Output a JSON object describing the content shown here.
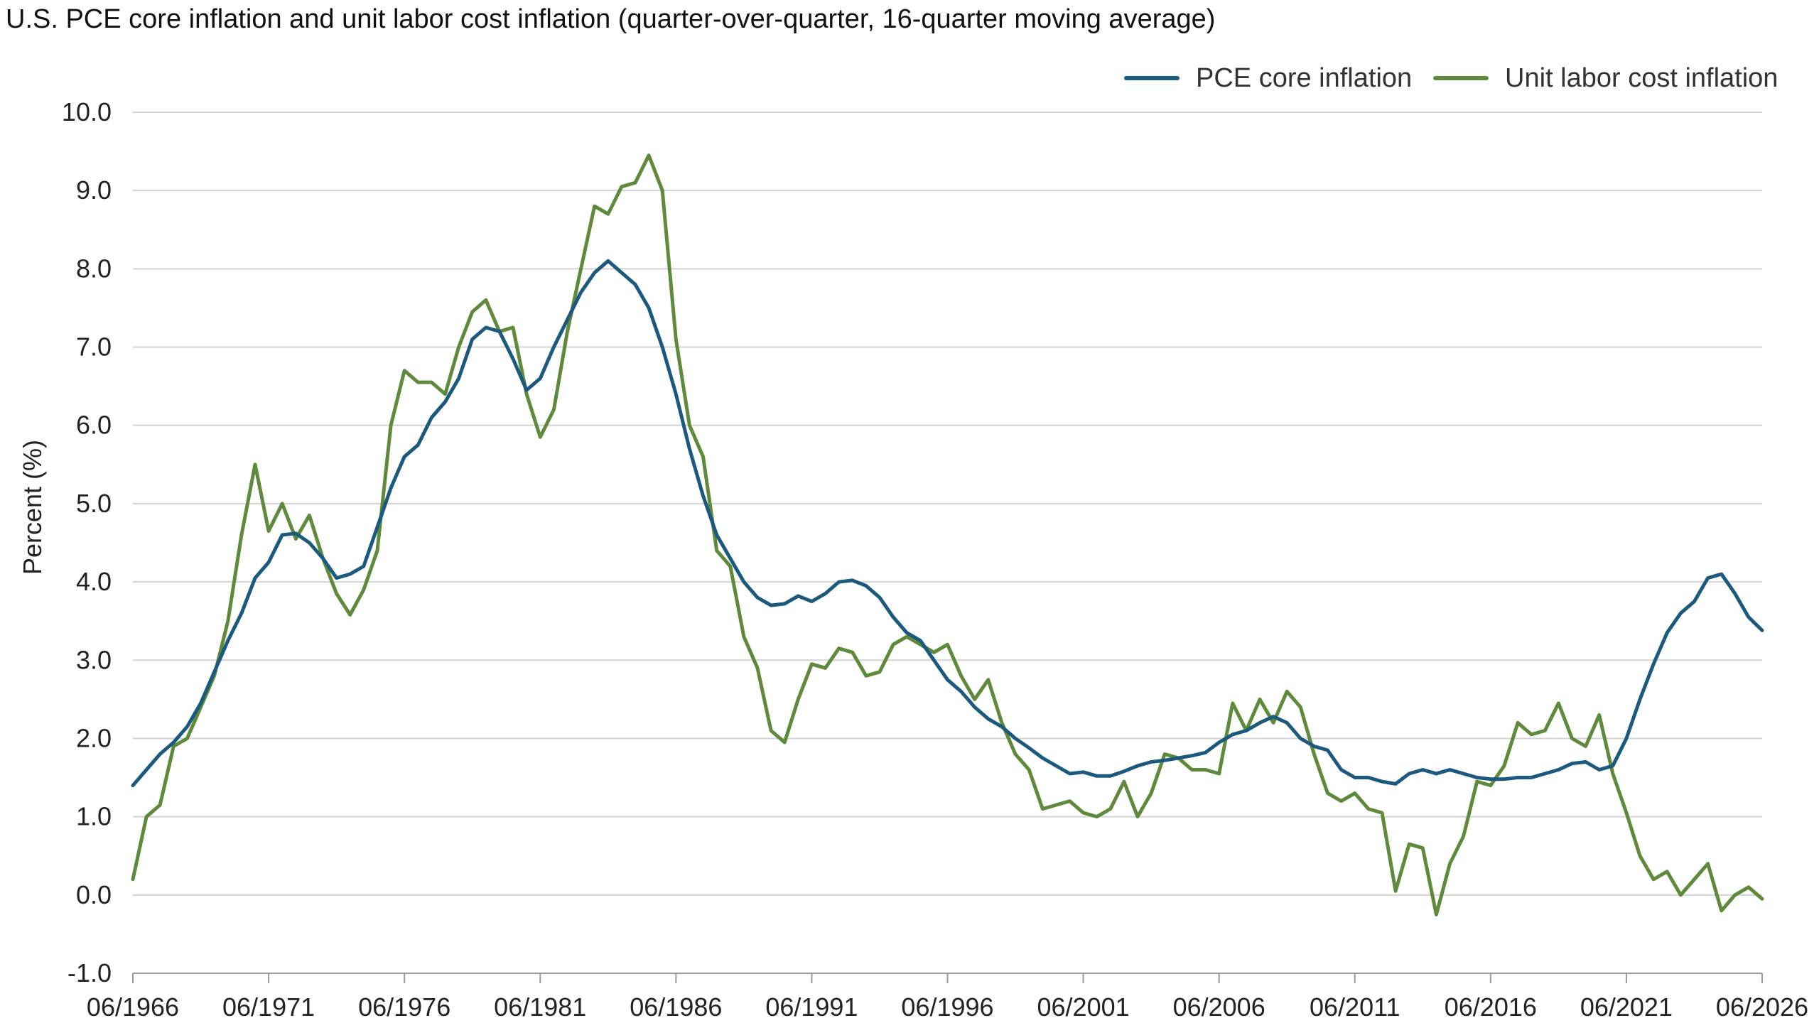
{
  "chart_data": {
    "type": "line",
    "title": "U.S. PCE core inflation and unit labor cost inflation (quarter-over-quarter, 16-quarter moving average)",
    "ylabel": "Percent (%)",
    "xlabel": "",
    "ylim": [
      -1.0,
      10.0
    ],
    "xlim": [
      1966.5,
      2026.5
    ],
    "yticks": [
      "-1.0",
      "0.0",
      "1.0",
      "2.0",
      "3.0",
      "4.0",
      "5.0",
      "6.0",
      "7.0",
      "8.0",
      "9.0",
      "10.0"
    ],
    "xticks": [
      "06/1966",
      "06/1971",
      "06/1976",
      "06/1981",
      "06/1986",
      "06/1991",
      "06/1996",
      "06/2001",
      "06/2006",
      "06/2011",
      "06/2016",
      "06/2021",
      "06/2026"
    ],
    "grid": true,
    "legend_position": "top-right",
    "series": [
      {
        "name": "PCE core inflation",
        "color": "#1b5a7e",
        "points": [
          [
            1966.5,
            1.4
          ],
          [
            1967.0,
            1.6
          ],
          [
            1967.5,
            1.8
          ],
          [
            1968.0,
            1.95
          ],
          [
            1968.5,
            2.15
          ],
          [
            1969.0,
            2.45
          ],
          [
            1969.5,
            2.85
          ],
          [
            1970.0,
            3.25
          ],
          [
            1970.5,
            3.6
          ],
          [
            1971.0,
            4.05
          ],
          [
            1971.5,
            4.25
          ],
          [
            1972.0,
            4.6
          ],
          [
            1972.5,
            4.62
          ],
          [
            1973.0,
            4.5
          ],
          [
            1973.5,
            4.3
          ],
          [
            1974.0,
            4.05
          ],
          [
            1974.5,
            4.1
          ],
          [
            1975.0,
            4.2
          ],
          [
            1975.5,
            4.7
          ],
          [
            1976.0,
            5.2
          ],
          [
            1976.5,
            5.6
          ],
          [
            1977.0,
            5.75
          ],
          [
            1977.5,
            6.1
          ],
          [
            1978.0,
            6.3
          ],
          [
            1978.5,
            6.6
          ],
          [
            1979.0,
            7.1
          ],
          [
            1979.5,
            7.25
          ],
          [
            1980.0,
            7.2
          ],
          [
            1980.5,
            6.85
          ],
          [
            1981.0,
            6.45
          ],
          [
            1981.5,
            6.6
          ],
          [
            1982.0,
            7.0
          ],
          [
            1982.5,
            7.35
          ],
          [
            1983.0,
            7.7
          ],
          [
            1983.5,
            7.95
          ],
          [
            1984.0,
            8.1
          ],
          [
            1984.5,
            7.95
          ],
          [
            1985.0,
            7.8
          ],
          [
            1985.5,
            7.5
          ],
          [
            1986.0,
            7.0
          ],
          [
            1986.5,
            6.4
          ],
          [
            1987.0,
            5.7
          ],
          [
            1987.5,
            5.1
          ],
          [
            1988.0,
            4.6
          ],
          [
            1988.5,
            4.3
          ],
          [
            1989.0,
            4.0
          ],
          [
            1989.5,
            3.8
          ],
          [
            1990.0,
            3.7
          ],
          [
            1990.5,
            3.72
          ],
          [
            1991.0,
            3.82
          ],
          [
            1991.5,
            3.75
          ],
          [
            1992.0,
            3.85
          ],
          [
            1992.5,
            4.0
          ],
          [
            1993.0,
            4.02
          ],
          [
            1993.5,
            3.95
          ],
          [
            1994.0,
            3.8
          ],
          [
            1994.5,
            3.55
          ],
          [
            1995.0,
            3.35
          ],
          [
            1995.5,
            3.25
          ],
          [
            1996.0,
            3.0
          ],
          [
            1996.5,
            2.75
          ],
          [
            1997.0,
            2.6
          ],
          [
            1997.5,
            2.4
          ],
          [
            1998.0,
            2.25
          ],
          [
            1998.5,
            2.15
          ],
          [
            1999.0,
            2.0
          ],
          [
            1999.5,
            1.88
          ],
          [
            2000.0,
            1.75
          ],
          [
            2000.5,
            1.65
          ],
          [
            2001.0,
            1.55
          ],
          [
            2001.5,
            1.57
          ],
          [
            2002.0,
            1.52
          ],
          [
            2002.5,
            1.52
          ],
          [
            2003.0,
            1.58
          ],
          [
            2003.5,
            1.65
          ],
          [
            2004.0,
            1.7
          ],
          [
            2004.5,
            1.72
          ],
          [
            2005.0,
            1.75
          ],
          [
            2005.5,
            1.78
          ],
          [
            2006.0,
            1.82
          ],
          [
            2006.5,
            1.95
          ],
          [
            2007.0,
            2.05
          ],
          [
            2007.5,
            2.1
          ],
          [
            2008.0,
            2.2
          ],
          [
            2008.5,
            2.28
          ],
          [
            2009.0,
            2.2
          ],
          [
            2009.5,
            2.0
          ],
          [
            2010.0,
            1.9
          ],
          [
            2010.5,
            1.85
          ],
          [
            2011.0,
            1.6
          ],
          [
            2011.5,
            1.5
          ],
          [
            2012.0,
            1.5
          ],
          [
            2012.5,
            1.45
          ],
          [
            2013.0,
            1.42
          ],
          [
            2013.5,
            1.55
          ],
          [
            2014.0,
            1.6
          ],
          [
            2014.5,
            1.55
          ],
          [
            2015.0,
            1.6
          ],
          [
            2015.5,
            1.55
          ],
          [
            2016.0,
            1.5
          ],
          [
            2016.5,
            1.48
          ],
          [
            2017.0,
            1.48
          ],
          [
            2017.5,
            1.5
          ],
          [
            2018.0,
            1.5
          ],
          [
            2018.5,
            1.55
          ],
          [
            2019.0,
            1.6
          ],
          [
            2019.5,
            1.68
          ],
          [
            2020.0,
            1.7
          ],
          [
            2020.5,
            1.6
          ],
          [
            2021.0,
            1.65
          ],
          [
            2021.5,
            2.0
          ],
          [
            2022.0,
            2.5
          ],
          [
            2022.5,
            2.95
          ],
          [
            2023.0,
            3.35
          ],
          [
            2023.5,
            3.6
          ],
          [
            2024.0,
            3.75
          ],
          [
            2024.5,
            4.05
          ],
          [
            2025.0,
            4.1
          ],
          [
            2025.5,
            3.85
          ],
          [
            2026.0,
            3.55
          ],
          [
            2026.5,
            3.38
          ]
        ]
      },
      {
        "name": "Unit labor cost inflation",
        "color": "#5f8a3c",
        "points": [
          [
            1966.5,
            0.2
          ],
          [
            1967.0,
            1.0
          ],
          [
            1967.5,
            1.15
          ],
          [
            1968.0,
            1.9
          ],
          [
            1968.5,
            2.0
          ],
          [
            1969.0,
            2.4
          ],
          [
            1969.5,
            2.8
          ],
          [
            1970.0,
            3.5
          ],
          [
            1970.5,
            4.6
          ],
          [
            1971.0,
            5.5
          ],
          [
            1971.5,
            4.65
          ],
          [
            1972.0,
            5.0
          ],
          [
            1972.5,
            4.55
          ],
          [
            1973.0,
            4.85
          ],
          [
            1973.5,
            4.3
          ],
          [
            1974.0,
            3.85
          ],
          [
            1974.5,
            3.58
          ],
          [
            1975.0,
            3.9
          ],
          [
            1975.5,
            4.4
          ],
          [
            1976.0,
            6.0
          ],
          [
            1976.5,
            6.7
          ],
          [
            1977.0,
            6.55
          ],
          [
            1977.5,
            6.55
          ],
          [
            1978.0,
            6.4
          ],
          [
            1978.5,
            7.0
          ],
          [
            1979.0,
            7.45
          ],
          [
            1979.5,
            7.6
          ],
          [
            1980.0,
            7.2
          ],
          [
            1980.5,
            7.25
          ],
          [
            1981.0,
            6.4
          ],
          [
            1981.5,
            5.85
          ],
          [
            1982.0,
            6.2
          ],
          [
            1982.5,
            7.2
          ],
          [
            1983.0,
            8.0
          ],
          [
            1983.5,
            8.8
          ],
          [
            1984.0,
            8.7
          ],
          [
            1984.5,
            9.05
          ],
          [
            1985.0,
            9.1
          ],
          [
            1985.5,
            9.45
          ],
          [
            1986.0,
            9.0
          ],
          [
            1986.5,
            7.1
          ],
          [
            1987.0,
            6.0
          ],
          [
            1987.5,
            5.6
          ],
          [
            1988.0,
            4.4
          ],
          [
            1988.5,
            4.2
          ],
          [
            1989.0,
            3.3
          ],
          [
            1989.5,
            2.9
          ],
          [
            1990.0,
            2.1
          ],
          [
            1990.5,
            1.95
          ],
          [
            1991.0,
            2.5
          ],
          [
            1991.5,
            2.95
          ],
          [
            1992.0,
            2.9
          ],
          [
            1992.5,
            3.15
          ],
          [
            1993.0,
            3.1
          ],
          [
            1993.5,
            2.8
          ],
          [
            1994.0,
            2.85
          ],
          [
            1994.5,
            3.2
          ],
          [
            1995.0,
            3.3
          ],
          [
            1995.5,
            3.2
          ],
          [
            1996.0,
            3.1
          ],
          [
            1996.5,
            3.2
          ],
          [
            1997.0,
            2.8
          ],
          [
            1997.5,
            2.5
          ],
          [
            1998.0,
            2.75
          ],
          [
            1998.5,
            2.2
          ],
          [
            1999.0,
            1.8
          ],
          [
            1999.5,
            1.6
          ],
          [
            2000.0,
            1.1
          ],
          [
            2000.5,
            1.15
          ],
          [
            2001.0,
            1.2
          ],
          [
            2001.5,
            1.05
          ],
          [
            2002.0,
            1.0
          ],
          [
            2002.5,
            1.1
          ],
          [
            2003.0,
            1.45
          ],
          [
            2003.5,
            1.0
          ],
          [
            2004.0,
            1.3
          ],
          [
            2004.5,
            1.8
          ],
          [
            2005.0,
            1.75
          ],
          [
            2005.5,
            1.6
          ],
          [
            2006.0,
            1.6
          ],
          [
            2006.5,
            1.55
          ],
          [
            2007.0,
            2.45
          ],
          [
            2007.5,
            2.1
          ],
          [
            2008.0,
            2.5
          ],
          [
            2008.5,
            2.2
          ],
          [
            2009.0,
            2.6
          ],
          [
            2009.5,
            2.4
          ],
          [
            2010.0,
            1.8
          ],
          [
            2010.5,
            1.3
          ],
          [
            2011.0,
            1.2
          ],
          [
            2011.5,
            1.3
          ],
          [
            2012.0,
            1.1
          ],
          [
            2012.5,
            1.05
          ],
          [
            2013.0,
            0.05
          ],
          [
            2013.5,
            0.65
          ],
          [
            2014.0,
            0.6
          ],
          [
            2014.5,
            -0.25
          ],
          [
            2015.0,
            0.4
          ],
          [
            2015.5,
            0.75
          ],
          [
            2016.0,
            1.45
          ],
          [
            2016.5,
            1.4
          ],
          [
            2017.0,
            1.65
          ],
          [
            2017.5,
            2.2
          ],
          [
            2018.0,
            2.05
          ],
          [
            2018.5,
            2.1
          ],
          [
            2019.0,
            2.45
          ],
          [
            2019.5,
            2.0
          ],
          [
            2020.0,
            1.9
          ],
          [
            2020.5,
            2.3
          ],
          [
            2021.0,
            1.55
          ],
          [
            2021.5,
            1.05
          ],
          [
            2022.0,
            0.5
          ],
          [
            2022.5,
            0.2
          ],
          [
            2023.0,
            0.3
          ],
          [
            2023.5,
            0.0
          ],
          [
            2024.0,
            0.2
          ],
          [
            2024.5,
            0.4
          ],
          [
            2025.0,
            -0.2
          ],
          [
            2025.5,
            0.0
          ],
          [
            2026.0,
            0.1
          ],
          [
            2026.5,
            -0.05
          ]
        ]
      }
    ]
  }
}
